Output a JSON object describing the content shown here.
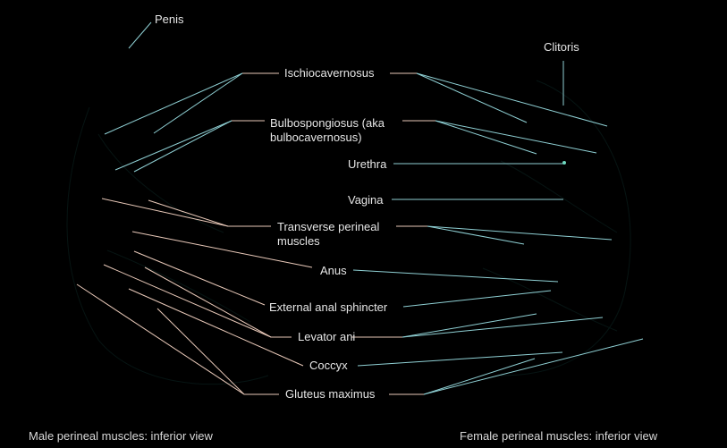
{
  "labels": {
    "penis": "Penis",
    "clitoris": "Clitoris",
    "ischiocavernosus": "Ischiocavernosus",
    "bulbospongiosus_line1": "Bulbospongiosus (aka",
    "bulbospongiosus_line2": "bulbocavernosus)",
    "urethra": "Urethra",
    "vagina": "Vagina",
    "transverse_line1": "Transverse perineal",
    "transverse_line2": "muscles",
    "anus": "Anus",
    "external_anal_sphincter": "External anal sphincter",
    "levator_ani": "Levator ani",
    "coccyx": "Coccyx",
    "gluteus_maximus": "Gluteus maximus"
  },
  "captions": {
    "male": "Male perineal muscles: inferior view",
    "female": "Female perineal muscles: inferior view"
  },
  "colors": {
    "background": "#000000",
    "leader_light": "#e9c9b9",
    "leader_teal": "#8fd0d4",
    "text": "#e6e6e6"
  }
}
